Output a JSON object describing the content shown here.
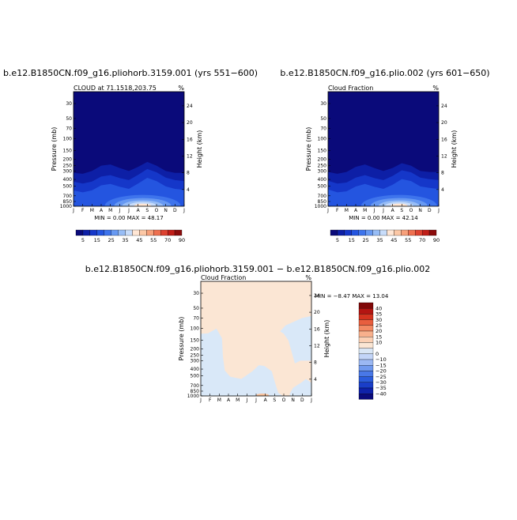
{
  "palette": {
    "levels": [
      "#0a0a7a",
      "#0d1fa6",
      "#1537c9",
      "#2455e0",
      "#3e74ec",
      "#6799f2",
      "#97bdf6",
      "#c7dcfa",
      "#ffe6d4",
      "#fcc8a6",
      "#f7a07a",
      "#ee7050",
      "#dd4230",
      "#c01e18",
      "#8c0c0c"
    ],
    "diff_levels": [
      "#0b0b7c",
      "#0f22a9",
      "#1a3ec8",
      "#2b5cdc",
      "#4978e7",
      "#7099ee",
      "#9bb8f3",
      "#c3d5f8",
      "#d9e6f5",
      "#fbe6d4",
      "#fbd0b4",
      "#f8b08c",
      "#f38a64",
      "#e85e3e",
      "#d4331f",
      "#b41512",
      "#800808"
    ]
  },
  "chart_data": [
    {
      "type": "heatmap",
      "title": "b.e12.B1850CN.f09_g16.pliohorb.3159.001 (yrs 551−600)",
      "subtitle_left": "CLOUD at 71.1518,203.75",
      "subtitle_right": "%",
      "ylabel": "Pressure (mb)",
      "ylabel_right": "Height (km)",
      "x_ticks": [
        "J",
        "F",
        "M",
        "A",
        "M",
        "J",
        "J",
        "A",
        "S",
        "O",
        "N",
        "D",
        "J"
      ],
      "pressure_ticks": [
        30,
        50,
        70,
        100,
        150,
        200,
        250,
        300,
        400,
        500,
        700,
        850,
        1000
      ],
      "pressure_range": [
        20,
        1000
      ],
      "height_ticks": [
        4,
        8,
        12,
        16,
        20,
        24
      ],
      "log_scale_y": true,
      "stats": "MIN =    0.00 MAX =   48.17",
      "min": 0.0,
      "max": 48.17,
      "cloud_top_mb": [
        320,
        330,
        300,
        250,
        240,
        270,
        300,
        260,
        220,
        250,
        300,
        320,
        320
      ],
      "low_cloud_peak_month": 7.5,
      "colorbar_labels": [
        "5",
        "15",
        "25",
        "35",
        "45",
        "55",
        "70",
        "90"
      ]
    },
    {
      "type": "heatmap",
      "title": "b.e12.B1850CN.f09_g16.plio.002 (yrs 601−650)",
      "subtitle_left": "Cloud Fraction",
      "subtitle_right": "%",
      "ylabel": "Pressure (mb)",
      "ylabel_right": "Height (km)",
      "x_ticks": [
        "J",
        "F",
        "M",
        "A",
        "M",
        "J",
        "J",
        "A",
        "S",
        "O",
        "N",
        "D",
        "J"
      ],
      "pressure_ticks": [
        30,
        50,
        70,
        100,
        150,
        200,
        250,
        300,
        400,
        500,
        700,
        850,
        1000
      ],
      "pressure_range": [
        20,
        1000
      ],
      "height_ticks": [
        4,
        8,
        12,
        16,
        20,
        24
      ],
      "log_scale_y": true,
      "stats": "MIN =    0.00 MAX =   42.14",
      "min": 0.0,
      "max": 42.14,
      "cloud_top_mb": [
        310,
        330,
        310,
        260,
        240,
        270,
        300,
        270,
        230,
        250,
        300,
        310,
        310
      ],
      "low_cloud_peak_month": 7.7,
      "colorbar_labels": [
        "5",
        "15",
        "25",
        "35",
        "45",
        "55",
        "70",
        "90"
      ]
    },
    {
      "type": "heatmap",
      "title": "b.e12.B1850CN.f09_g16.pliohorb.3159.001  −  b.e12.B1850CN.f09_g16.plio.002",
      "subtitle_left": "Cloud Fraction",
      "subtitle_right": "%",
      "ylabel": "Pressure (mb)",
      "ylabel_right": "Height (km)",
      "x_ticks": [
        "J",
        "F",
        "M",
        "A",
        "M",
        "J",
        "J",
        "A",
        "S",
        "O",
        "N",
        "D",
        "J"
      ],
      "pressure_ticks": [
        30,
        50,
        70,
        100,
        150,
        200,
        250,
        300,
        400,
        500,
        700,
        850,
        1000
      ],
      "pressure_range": [
        20,
        1000
      ],
      "height_ticks": [
        4,
        8,
        12,
        16,
        20,
        24
      ],
      "log_scale_y": true,
      "stats": "MIN =   −8.47 MAX =   13.04",
      "min": -8.47,
      "max": 13.04,
      "colorbar_labels": [
        "40",
        "35",
        "30",
        "25",
        "20",
        "15",
        "10",
        "0",
        "−10",
        "−15",
        "−20",
        "−25",
        "−30",
        "−35",
        "−40"
      ]
    }
  ]
}
